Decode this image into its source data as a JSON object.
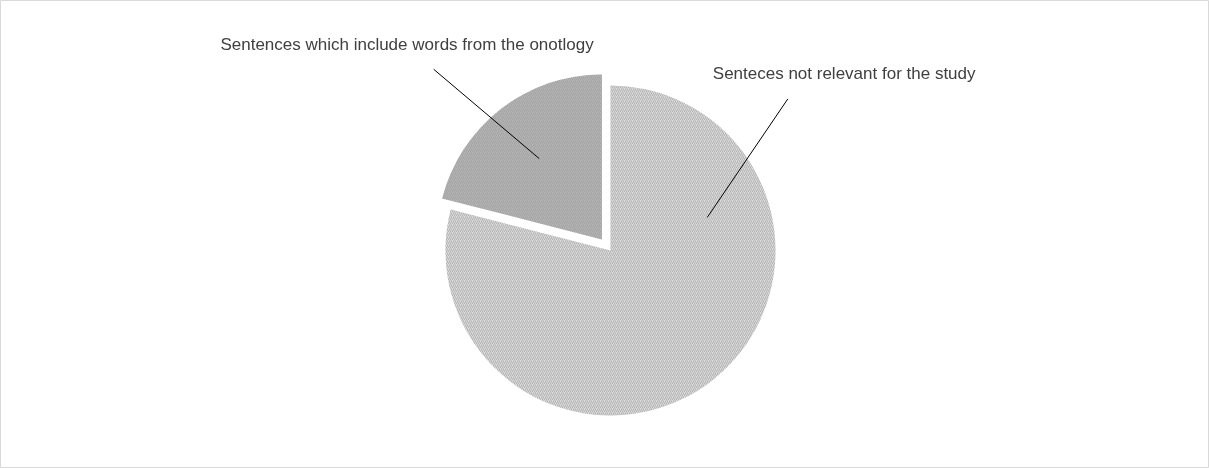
{
  "chart_data": {
    "type": "pie",
    "categories": [
      "Senteces not relevant for the study",
      "Sentences which include words from the onotlogy"
    ],
    "values": [
      79,
      21
    ],
    "colors": [
      "#d9d9d9",
      "#b3b3b3"
    ]
  }
}
